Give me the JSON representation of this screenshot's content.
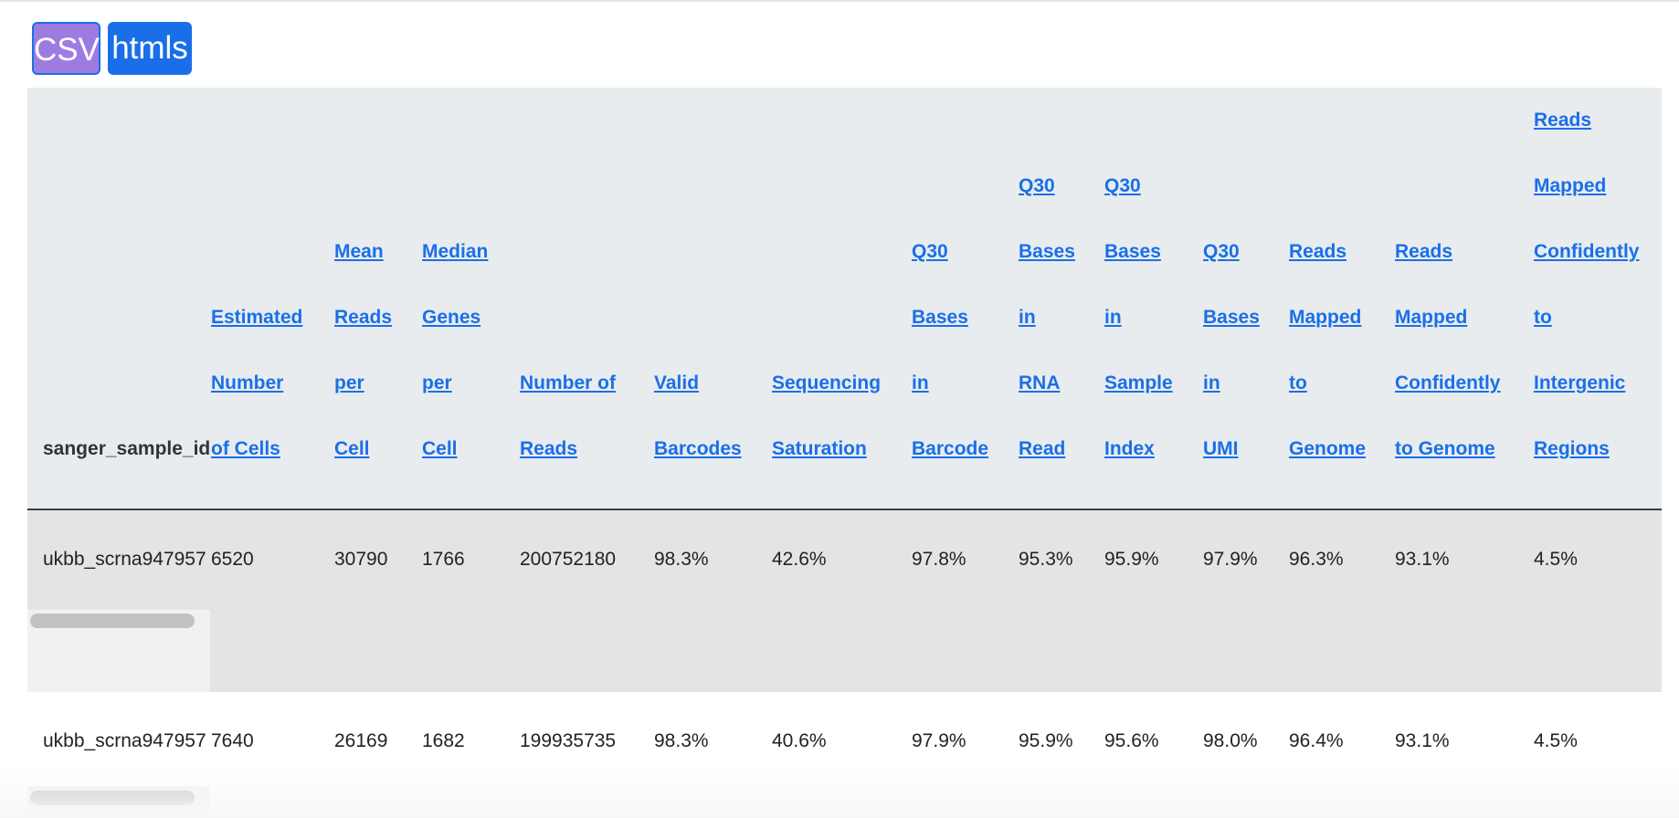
{
  "toolbar": {
    "csv_label": "CSV",
    "htmls_label": "htmls"
  },
  "table": {
    "columns": [
      {
        "key": "sanger_sample_id",
        "lines": [
          "sanger_sample_id"
        ],
        "link": false
      },
      {
        "key": "estimated_cells",
        "lines": [
          "Estimated",
          "Number",
          "of Cells"
        ],
        "link": true
      },
      {
        "key": "mean_reads",
        "lines": [
          "Mean",
          "Reads",
          "per",
          "Cell"
        ],
        "link": true
      },
      {
        "key": "median_genes",
        "lines": [
          "Median",
          "Genes",
          "per",
          "Cell"
        ],
        "link": true
      },
      {
        "key": "number_reads",
        "lines": [
          "Number of",
          "Reads"
        ],
        "link": true
      },
      {
        "key": "valid_barcodes",
        "lines": [
          "Valid",
          "Barcodes"
        ],
        "link": true
      },
      {
        "key": "seq_saturation",
        "lines": [
          "Sequencing",
          "Saturation"
        ],
        "link": true
      },
      {
        "key": "q30_barcode",
        "lines": [
          "Q30",
          "Bases",
          "in",
          "Barcode"
        ],
        "link": true
      },
      {
        "key": "q30_rna",
        "lines": [
          "Q30",
          "Bases",
          "in",
          "RNA",
          "Read"
        ],
        "link": true
      },
      {
        "key": "q30_sample_index",
        "lines": [
          "Q30",
          "Bases",
          "in",
          "Sample",
          "Index"
        ],
        "link": true
      },
      {
        "key": "q30_umi",
        "lines": [
          "Q30",
          "Bases",
          "in",
          "UMI"
        ],
        "link": true
      },
      {
        "key": "mapped_genome",
        "lines": [
          "Reads",
          "Mapped",
          "to",
          "Genome"
        ],
        "link": true
      },
      {
        "key": "mapped_conf_genome",
        "lines": [
          "Reads",
          "Mapped",
          "Confidently",
          "to Genome"
        ],
        "link": true
      },
      {
        "key": "mapped_conf_intergenic",
        "lines": [
          "Reads",
          "Mapped",
          "Confidently",
          "to",
          "Intergenic",
          "Regions"
        ],
        "link": true
      }
    ],
    "rows": [
      [
        "ukbb_scrna947957",
        "6520",
        "30790",
        "1766",
        "200752180",
        "98.3%",
        "42.6%",
        "97.8%",
        "95.3%",
        "95.9%",
        "97.9%",
        "96.3%",
        "93.1%",
        "4.5%"
      ],
      [
        "ukbb_scrna947957",
        "7640",
        "26169",
        "1682",
        "199935735",
        "98.3%",
        "40.6%",
        "97.9%",
        "95.9%",
        "95.6%",
        "98.0%",
        "96.4%",
        "93.1%",
        "4.5%"
      ]
    ]
  },
  "colors": {
    "link": "#1a6fe8",
    "header_bg": "#e8ecef",
    "row_fill": "#e4e4e4",
    "csv_btn": "#9e7be0",
    "htmls_btn": "#1a6fe8"
  }
}
